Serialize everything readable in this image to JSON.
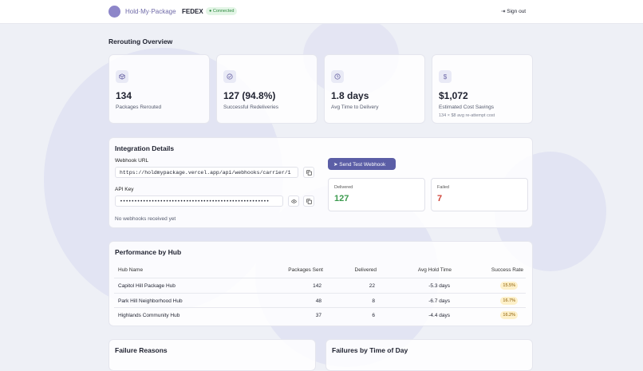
{
  "header": {
    "brand": "Hold·My·Package",
    "carrier": "FEDEX",
    "status": "Connected",
    "sign_out": "Sign out"
  },
  "overview": {
    "title": "Rerouting Overview",
    "cards": [
      {
        "value": "134",
        "label": "Packages Rerouted"
      },
      {
        "value": "127 (94.8%)",
        "label": "Successful Redeliveries"
      },
      {
        "value": "1.8 days",
        "label": "Avg Time to Delivery"
      },
      {
        "value": "$1,072",
        "label": "Estimated Cost Savings",
        "note": "134 × $8 avg re-attempt cost"
      }
    ]
  },
  "integration": {
    "title": "Integration Details",
    "webhook_label": "Webhook URL",
    "webhook_url": "https://holdmypackage.vercel.app/api/webhooks/carrier/1",
    "api_key_label": "API Key",
    "api_key": "••••••••••••••••••••••••••••••••••••••••••••••••••••",
    "empty": "No webhooks received yet",
    "button": "Send Test Webhook",
    "delivered_label": "Delivered",
    "delivered": "127",
    "failed_label": "Failed",
    "failed": "7"
  },
  "hubs": {
    "title": "Performance by Hub",
    "columns": [
      "Hub Name",
      "Packages Sent",
      "Delivered",
      "Avg Hold Time",
      "Success Rate"
    ],
    "rows": [
      [
        "Capitol Hill Package Hub",
        "142",
        "22",
        "-5.3 days",
        "15.5%"
      ],
      [
        "Park Hill Neighborhood Hub",
        "48",
        "8",
        "-6.7 days",
        "16.7%"
      ],
      [
        "Highlands Community Hub",
        "37",
        "6",
        "-4.4 days",
        "16.2%"
      ]
    ]
  },
  "sections": [
    "Failure Reasons",
    "Failures by Time of Day"
  ]
}
